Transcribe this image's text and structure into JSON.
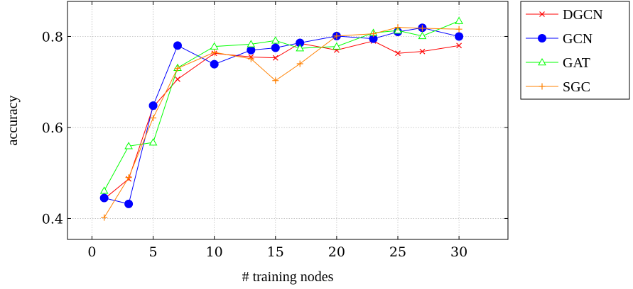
{
  "chart_data": {
    "type": "line",
    "xlabel": "# training nodes",
    "ylabel": "accuracy",
    "xlim": [
      -2,
      34
    ],
    "ylim": [
      0.354,
      0.877
    ],
    "xticks": [
      0,
      5,
      10,
      15,
      20,
      25,
      30
    ],
    "yticks": [
      0.4,
      0.6,
      0.8
    ],
    "ytick_labels": [
      "0.4",
      "0.6",
      "0.8"
    ],
    "grid": true,
    "legend_position": "outside-top-right",
    "x": [
      1,
      3,
      5,
      7,
      10,
      13,
      15,
      17,
      20,
      23,
      25,
      27,
      30
    ],
    "series": [
      {
        "name": "DGCN",
        "color": "#ff0000",
        "marker": "x",
        "values": [
          0.443,
          0.487,
          0.645,
          0.706,
          0.763,
          0.755,
          0.753,
          0.785,
          0.77,
          0.79,
          0.763,
          0.767,
          0.78
        ]
      },
      {
        "name": "GCN",
        "color": "#0000ff",
        "marker": "circle",
        "values": [
          0.445,
          0.432,
          0.648,
          0.78,
          0.739,
          0.77,
          0.775,
          0.786,
          0.801,
          0.795,
          0.81,
          0.819,
          0.8
        ]
      },
      {
        "name": "GAT",
        "color": "#00ff00",
        "marker": "triangle",
        "values": [
          0.461,
          0.559,
          0.567,
          0.731,
          0.778,
          0.783,
          0.791,
          0.774,
          0.778,
          0.808,
          0.813,
          0.801,
          0.834
        ]
      },
      {
        "name": "SGC",
        "color": "#ff8000",
        "marker": "plus",
        "values": [
          0.402,
          0.49,
          0.621,
          0.73,
          0.765,
          0.751,
          0.703,
          0.74,
          0.801,
          0.806,
          0.82,
          0.818,
          0.816
        ]
      }
    ]
  }
}
